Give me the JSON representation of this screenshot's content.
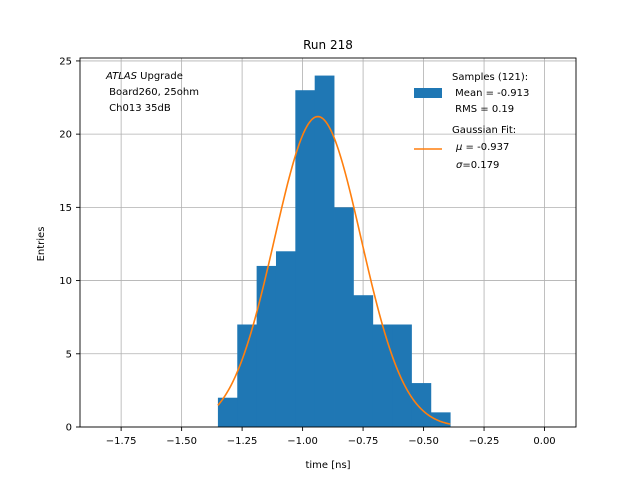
{
  "chart_data": {
    "type": "histogram",
    "title": "Run 218",
    "xlabel": "time [ns]",
    "ylabel": "Entries",
    "xlim": [
      -1.92,
      0.13
    ],
    "ylim": [
      0,
      25.2
    ],
    "xticks": [
      -1.75,
      -1.5,
      -1.25,
      -1.0,
      -0.75,
      -0.5,
      -0.25,
      0.0
    ],
    "xtick_labels": [
      "−1.75",
      "−1.50",
      "−1.25",
      "−1.00",
      "−0.75",
      "−0.50",
      "−0.25",
      "0.00"
    ],
    "yticks": [
      0,
      5,
      10,
      15,
      20,
      25
    ],
    "ytick_labels": [
      "0",
      "5",
      "10",
      "15",
      "20",
      "25"
    ],
    "grid": true,
    "annotation": {
      "italic": "ATLAS",
      "line1_rest": " Upgrade",
      "line2": " Board260, 25ohm",
      "line3": " Ch013 35dB"
    },
    "histogram": {
      "bin_edges": [
        -1.35,
        -1.27,
        -1.19,
        -1.11,
        -1.03,
        -0.95,
        -0.87,
        -0.79,
        -0.71,
        -0.63,
        -0.55,
        -0.47,
        -0.39
      ],
      "counts": [
        2,
        7,
        11,
        12,
        23,
        24,
        15,
        9,
        7,
        7,
        3,
        1
      ],
      "color": "#1f77b4",
      "legend_lines": [
        "Samples (121):",
        " Mean = -0.913",
        " RMS = 0.19"
      ]
    },
    "fit": {
      "type": "gaussian",
      "mu": -0.937,
      "sigma": 0.179,
      "amplitude": 21.2,
      "x_range": [
        -1.35,
        -0.39
      ],
      "color": "#ff7f0e",
      "legend_title": "Gaussian Fit:",
      "legend_mu_value": " = -0.937",
      "legend_sigma_value": "=0.179"
    },
    "legend_placement": "top-right"
  }
}
